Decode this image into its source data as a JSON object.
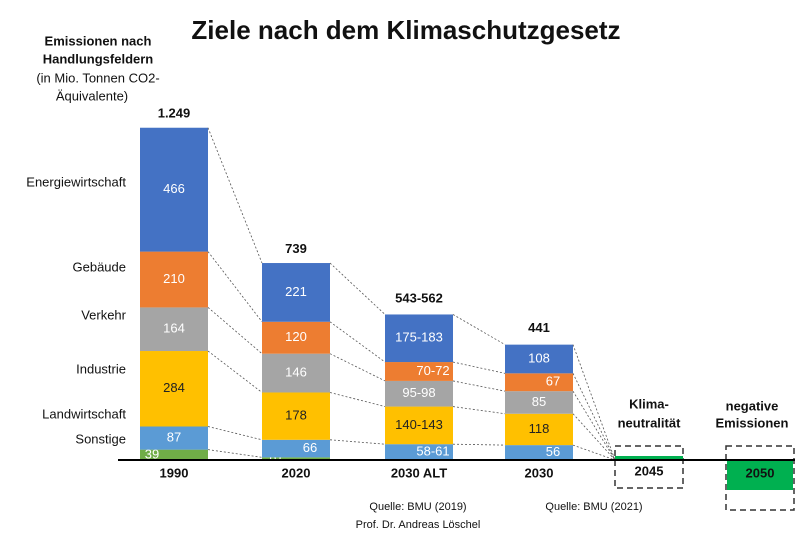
{
  "chart_data": {
    "type": "stacked-bar",
    "title": "Ziele nach dem Klimaschutzgesetz",
    "subtitle_lines": [
      "Emissionen nach",
      "Handlungsfeldern"
    ],
    "unit_lines": [
      "(in Mio. Tonnen CO2-",
      "Äquivalente)"
    ],
    "categories": [
      "1990",
      "2020",
      "2030 ALT",
      "2030",
      "2045",
      "2050"
    ],
    "series": [
      {
        "name": "Sonstige",
        "color": "#70ad47",
        "values": [
          39,
          10,
          null,
          null,
          null,
          null
        ],
        "value_labels": [
          "39",
          "10",
          null,
          null,
          null,
          null
        ]
      },
      {
        "name": "Landwirtschaft",
        "color": "#5b9bd5",
        "values": [
          87,
          66,
          [
            58,
            61
          ],
          56,
          null,
          null
        ],
        "value_labels": [
          "87",
          "66",
          "58-61",
          "56",
          null,
          null
        ]
      },
      {
        "name": "Industrie",
        "color": "#ffc000",
        "values": [
          284,
          178,
          [
            140,
            143
          ],
          118,
          null,
          null
        ],
        "value_labels": [
          "284",
          "178",
          "140-143",
          "118",
          null,
          null
        ]
      },
      {
        "name": "Verkehr",
        "color": "#a5a5a5",
        "values": [
          164,
          146,
          [
            95,
            98
          ],
          85,
          null,
          null
        ],
        "value_labels": [
          "164",
          "146",
          "95-98",
          "85",
          null,
          null
        ]
      },
      {
        "name": "Gebäude",
        "color": "#ed7d31",
        "values": [
          210,
          120,
          [
            70,
            72
          ],
          67,
          null,
          null
        ],
        "value_labels": [
          "210",
          "120",
          "70-72",
          "67",
          null,
          null
        ]
      },
      {
        "name": "Energiewirtschaft",
        "color": "#4472c4",
        "values": [
          466,
          221,
          [
            175,
            183
          ],
          108,
          null,
          null
        ],
        "value_labels": [
          "466",
          "221",
          "175-183",
          "108",
          null,
          null
        ]
      }
    ],
    "totals": [
      1249,
      739,
      [
        543,
        562
      ],
      441,
      null,
      null
    ],
    "total_labels": [
      "1.249",
      "739",
      "543-562",
      "441",
      null,
      null
    ],
    "annotations": [
      {
        "lines": [
          "Klima-",
          "neutralität"
        ]
      },
      {
        "lines": [
          "negative",
          "Emissionen"
        ]
      }
    ],
    "sources": [
      "Quelle: BMU (2019)",
      "Prof. Dr. Andreas Löschel",
      "Quelle: BMU (2021)"
    ]
  }
}
